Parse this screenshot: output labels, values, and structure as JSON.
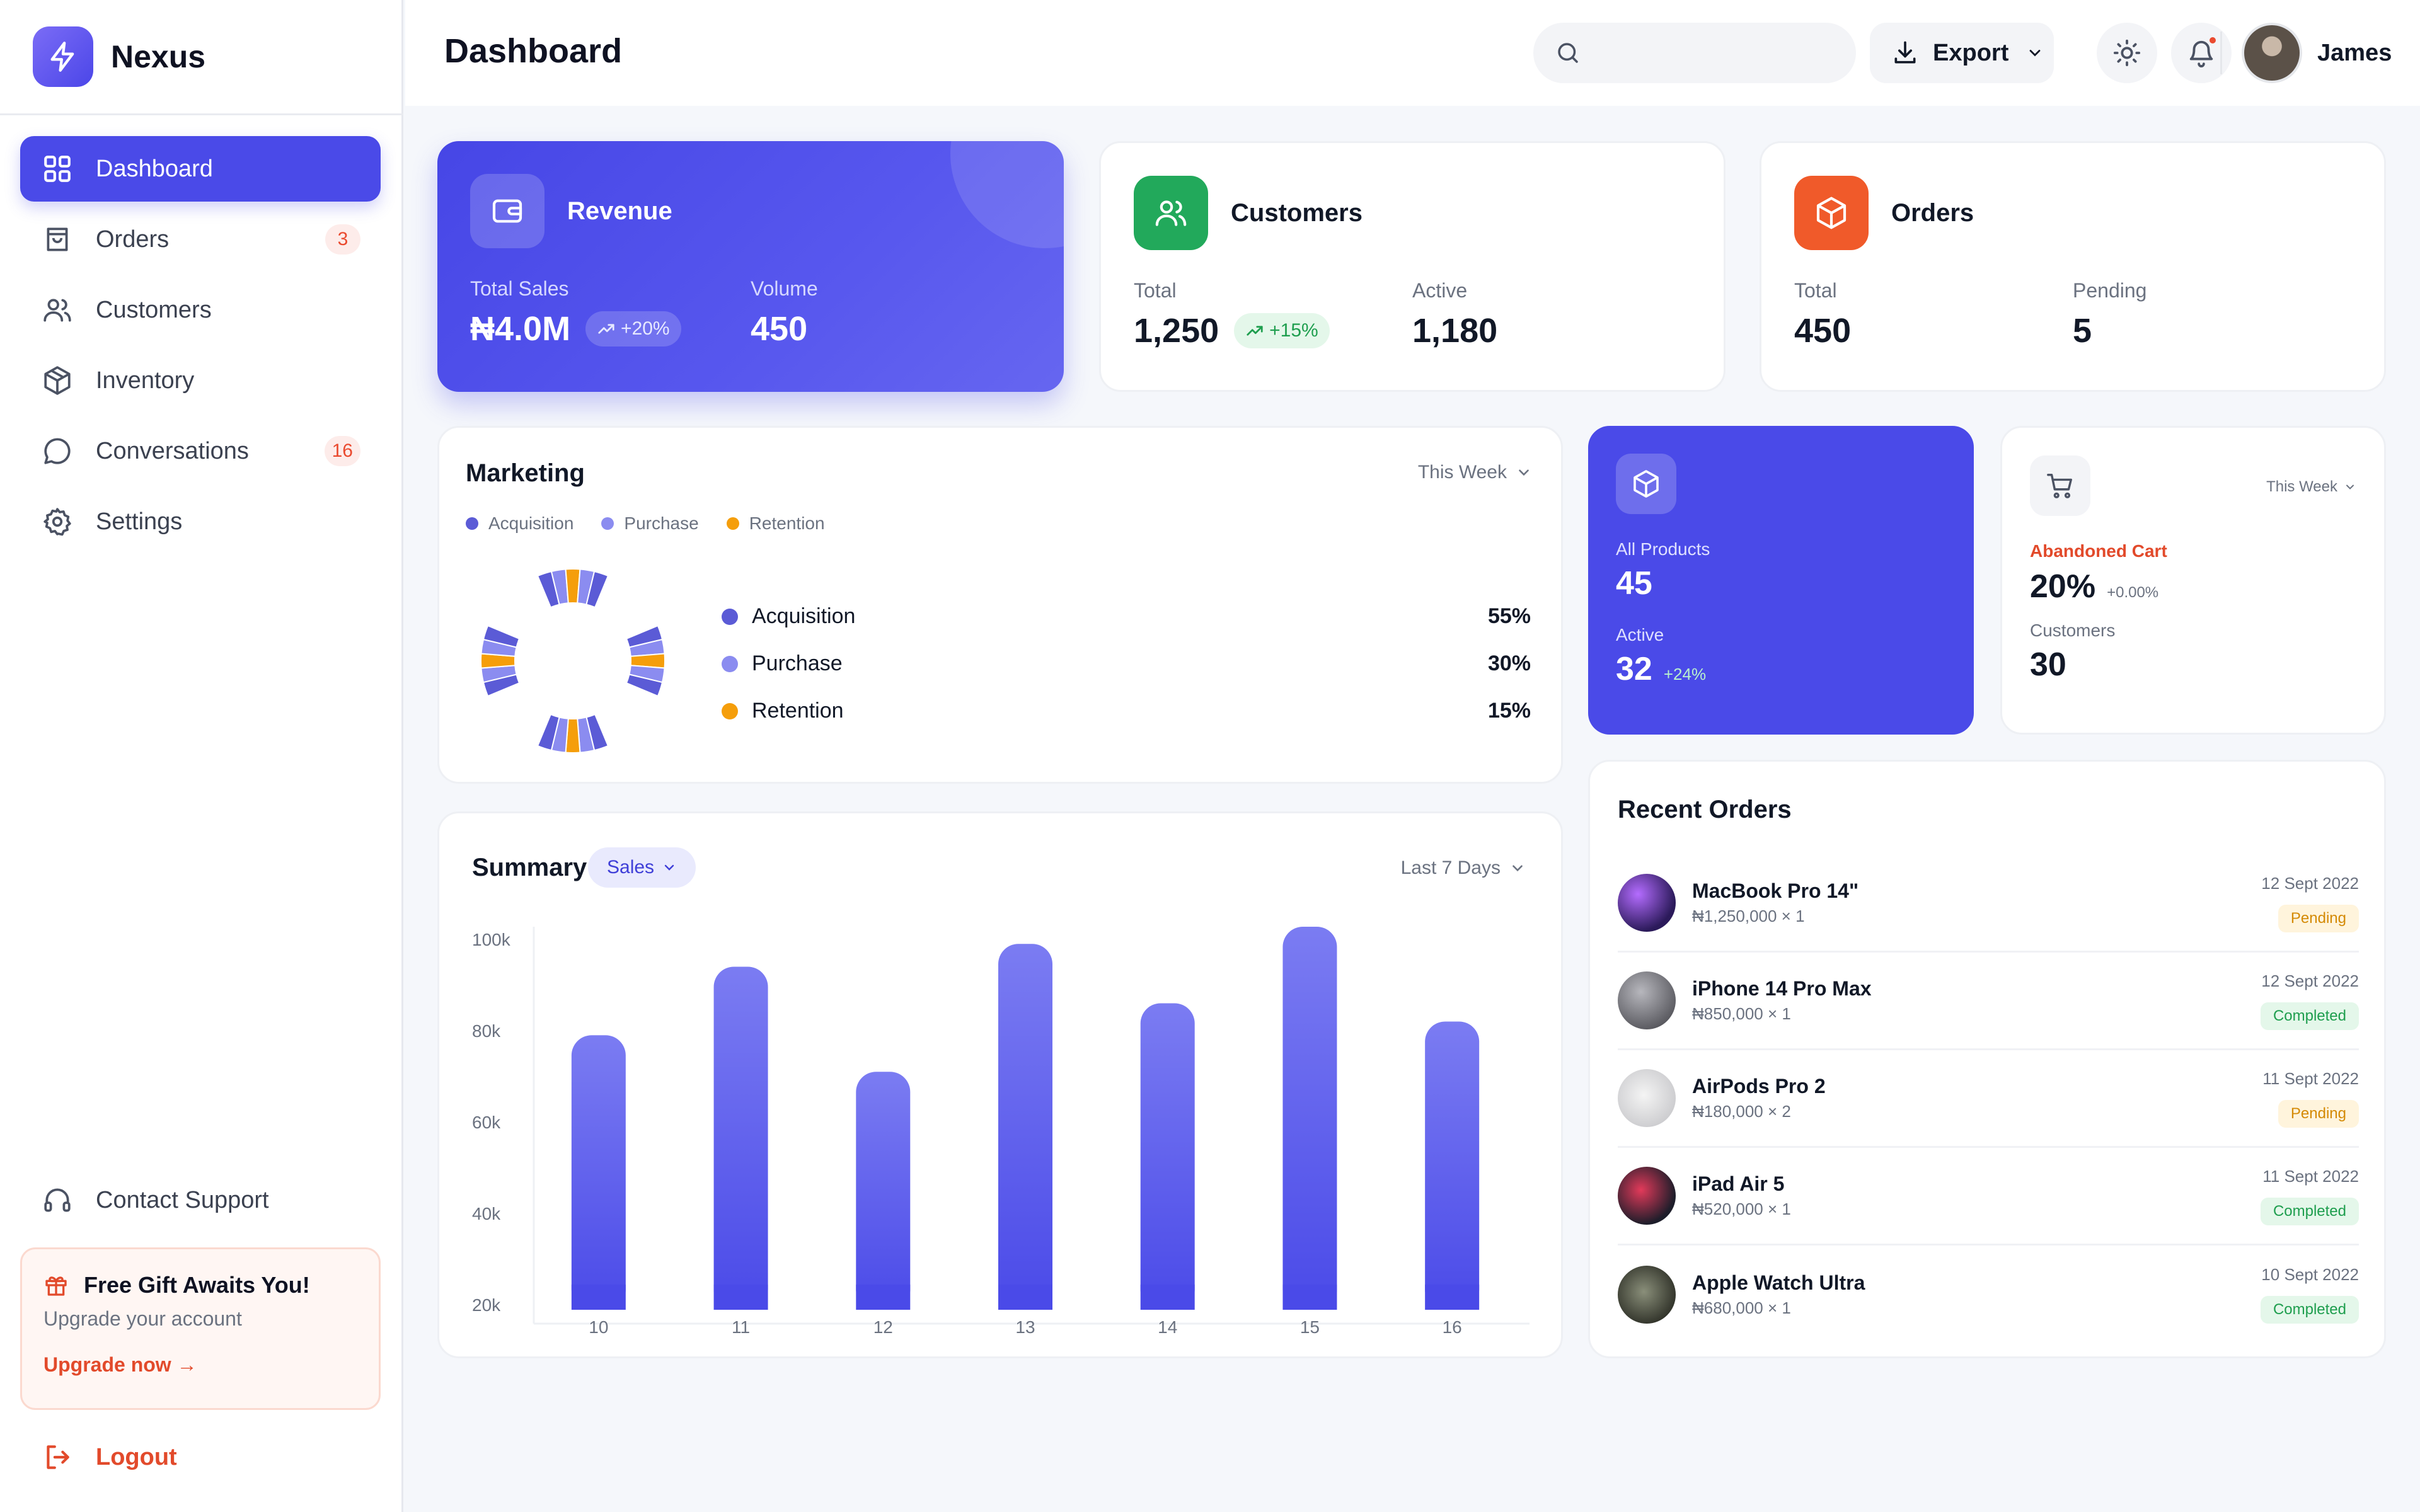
{
  "app": {
    "name": "Nexus"
  },
  "sidebar": {
    "items": [
      {
        "label": "Dashboard",
        "icon": "grid-icon",
        "active": true
      },
      {
        "label": "Orders",
        "icon": "bag-icon",
        "badge": "3"
      },
      {
        "label": "Customers",
        "icon": "users-icon"
      },
      {
        "label": "Inventory",
        "icon": "box-icon"
      },
      {
        "label": "Conversations",
        "icon": "chat-icon",
        "badge": "16"
      },
      {
        "label": "Settings",
        "icon": "gear-icon"
      }
    ],
    "support_label": "Contact Support",
    "promo": {
      "title": "Free Gift Awaits You!",
      "subtitle": "Upgrade your account",
      "link": "Upgrade now →"
    },
    "logout_label": "Logout"
  },
  "header": {
    "title": "Dashboard",
    "search_placeholder": "",
    "export_label": "Export",
    "user_name": "James"
  },
  "stats": {
    "revenue": {
      "title": "Revenue",
      "col1_label": "Total Sales",
      "col1_value": "₦4.0M",
      "col1_delta": "+20%",
      "col2_label": "Volume",
      "col2_value": "450"
    },
    "customers": {
      "title": "Customers",
      "col1_label": "Total",
      "col1_value": "1,250",
      "col1_delta": "+15%",
      "col2_label": "Active",
      "col2_value": "1,180"
    },
    "orders": {
      "title": "Orders",
      "col1_label": "Total",
      "col1_value": "450",
      "col2_label": "Pending",
      "col2_value": "5"
    }
  },
  "marketing": {
    "title": "Marketing",
    "period": "This Week",
    "legend": [
      {
        "label": "Acquisition",
        "color": "#5b5bd6"
      },
      {
        "label": "Purchase",
        "color": "#8b8cf0"
      },
      {
        "label": "Retention",
        "color": "#f59e0b"
      }
    ],
    "rows": [
      {
        "label": "Acquisition",
        "value": "55%",
        "color": "#5b5bd6"
      },
      {
        "label": "Purchase",
        "value": "30%",
        "color": "#8b8cf0"
      },
      {
        "label": "Retention",
        "value": "15%",
        "color": "#f59e0b"
      }
    ]
  },
  "products": {
    "label1": "All Products",
    "value1": "45",
    "label2": "Active",
    "value2": "32",
    "delta2": "+24%"
  },
  "cart": {
    "period": "This Week",
    "label": "Abandoned Cart",
    "value": "20%",
    "delta": "+0.00%",
    "sub_label": "Customers",
    "sub_value": "30"
  },
  "summary": {
    "title": "Summary",
    "filter": "Sales",
    "period": "Last 7 Days"
  },
  "chart_data": {
    "type": "bar",
    "categories": [
      "10",
      "11",
      "12",
      "13",
      "14",
      "15",
      "16"
    ],
    "values": [
      79000,
      94000,
      71000,
      99000,
      86000,
      103000,
      82000
    ],
    "ylim": [
      20000,
      100000
    ],
    "yticks": [
      "100k",
      "80k",
      "60k",
      "40k",
      "20k"
    ],
    "color": "#5b5bee",
    "grid": false
  },
  "recent_orders": {
    "title": "Recent Orders",
    "items": [
      {
        "name": "MacBook Pro 14\"",
        "sub": "₦1,250,000 × 1",
        "date": "12 Sept 2022",
        "status": "Pending"
      },
      {
        "name": "iPhone 14 Pro Max",
        "sub": "₦850,000 × 1",
        "date": "12 Sept 2022",
        "status": "Completed"
      },
      {
        "name": "AirPods Pro 2",
        "sub": "₦180,000 × 2",
        "date": "11 Sept 2022",
        "status": "Pending"
      },
      {
        "name": "iPad Air 5",
        "sub": "₦520,000 × 1",
        "date": "11 Sept 2022",
        "status": "Completed"
      },
      {
        "name": "Apple Watch Ultra",
        "sub": "₦680,000 × 1",
        "date": "10 Sept 2022",
        "status": "Completed"
      }
    ]
  }
}
